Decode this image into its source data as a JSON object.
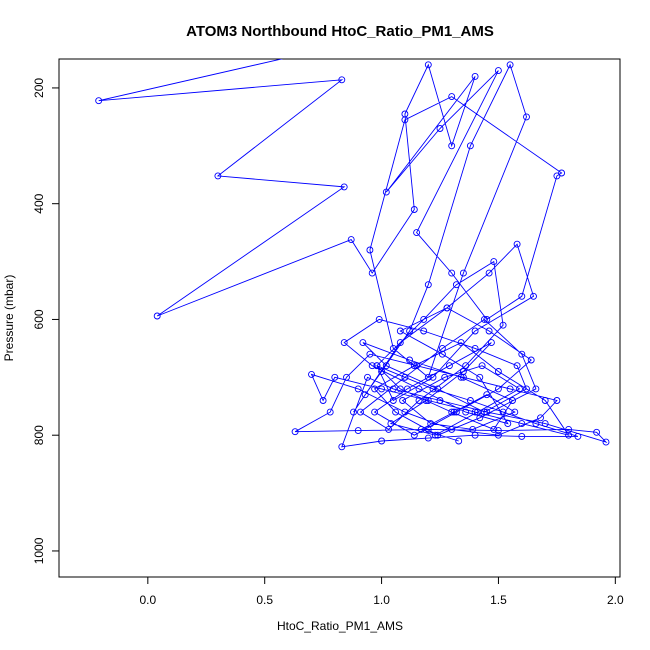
{
  "chart_data": {
    "type": "scatter",
    "connected": true,
    "marker": "open-circle",
    "color": "#0000ff",
    "title": "ATOM3 Northbound HtoC_Ratio_PM1_AMS",
    "xlabel": "HtoC_Ratio_PM1_AMS",
    "ylabel": "Pressure (mbar)",
    "xlim": [
      -0.38,
      2.02
    ],
    "ylim": [
      1045,
      150
    ],
    "y_reversed": true,
    "xticks": [
      0.0,
      0.5,
      1.0,
      1.5,
      2.0
    ],
    "xtick_labels": [
      "0.0",
      "0.5",
      "1.0",
      "1.5",
      "2.0"
    ],
    "yticks": [
      200,
      400,
      600,
      800,
      1000
    ],
    "ytick_labels": [
      "200",
      "400",
      "600",
      "800",
      "1000"
    ],
    "grid": false,
    "x": [
      0.68,
      -0.21,
      0.83,
      0.3,
      0.84,
      0.04,
      0.87,
      0.96,
      1.14,
      1.1,
      1.2,
      1.3,
      1.4,
      1.02,
      1.25,
      1.5,
      1.15,
      1.3,
      1.45,
      1.6,
      1.75,
      1.77,
      1.3,
      1.1,
      0.95,
      1.05,
      1.2,
      1.35,
      1.62,
      1.55,
      1.38,
      1.2,
      1.12,
      1.0,
      0.93,
      0.88,
      1.08,
      1.28,
      1.46,
      1.58,
      1.65,
      1.4,
      1.22,
      1.05,
      0.98,
      1.18,
      1.32,
      1.48,
      1.52,
      1.36,
      1.16,
      1.03,
      0.91,
      1.1,
      1.26,
      1.44,
      1.6,
      1.66,
      1.42,
      1.24,
      1.06,
      0.97,
      1.14,
      1.34,
      1.5,
      1.7,
      1.8,
      1.6,
      1.4,
      1.2,
      1.0,
      0.8,
      0.75,
      0.7,
      0.9,
      1.1,
      1.3,
      1.5,
      1.68,
      1.75,
      1.55,
      1.35,
      1.15,
      0.95,
      0.85,
      0.78,
      0.63,
      0.9,
      1.2,
      1.5,
      1.8,
      1.92,
      1.96,
      1.7,
      1.45,
      1.25,
      1.05,
      0.94,
      0.83,
      1.0,
      1.2,
      1.4,
      1.6,
      1.84,
      1.66,
      1.52,
      1.38,
      1.22,
      1.1,
      0.98,
      1.08,
      1.3,
      1.48,
      1.56,
      1.34,
      1.12,
      0.92,
      1.02,
      1.24,
      1.44,
      1.62,
      1.58,
      1.4,
      1.18,
      0.99,
      0.84,
      0.96,
      1.16,
      1.36,
      1.54,
      1.42,
      1.26,
      1.08,
      1.28,
      1.46,
      1.64,
      1.5,
      1.32,
      1.14,
      0.97,
      1.11,
      1.29,
      1.47,
      1.35,
      1.19,
      1.04,
      1.23,
      1.41,
      1.59,
      1.43,
      1.27,
      1.09,
      1.21,
      1.39,
      1.57,
      1.45,
      1.31,
      1.17,
      1.33
    ],
    "y": [
      140,
      222,
      186,
      352,
      371,
      594,
      462,
      520,
      410,
      245,
      160,
      300,
      180,
      380,
      270,
      170,
      450,
      520,
      600,
      560,
      352,
      347,
      215,
      255,
      480,
      650,
      700,
      520,
      250,
      160,
      300,
      540,
      620,
      690,
      730,
      760,
      640,
      580,
      520,
      470,
      560,
      620,
      700,
      740,
      680,
      600,
      540,
      500,
      610,
      680,
      740,
      790,
      760,
      700,
      650,
      600,
      660,
      720,
      770,
      800,
      760,
      720,
      680,
      640,
      690,
      740,
      800,
      780,
      760,
      740,
      720,
      700,
      740,
      695,
      720,
      760,
      790,
      800,
      770,
      740,
      720,
      700,
      680,
      660,
      700,
      760,
      794,
      792,
      790,
      792,
      790,
      795,
      812,
      780,
      760,
      740,
      720,
      700,
      820,
      810,
      805,
      800,
      802,
      802,
      780,
      760,
      740,
      720,
      700,
      680,
      720,
      760,
      790,
      740,
      700,
      670,
      640,
      680,
      720,
      760,
      720,
      680,
      650,
      620,
      600,
      640,
      680,
      720,
      760,
      780,
      700,
      660,
      620,
      580,
      620,
      670,
      720,
      760,
      800,
      760,
      720,
      680,
      640,
      690,
      740,
      780,
      800,
      760,
      720,
      680,
      700,
      740,
      780,
      790,
      760,
      730,
      760,
      790,
      810
    ]
  }
}
